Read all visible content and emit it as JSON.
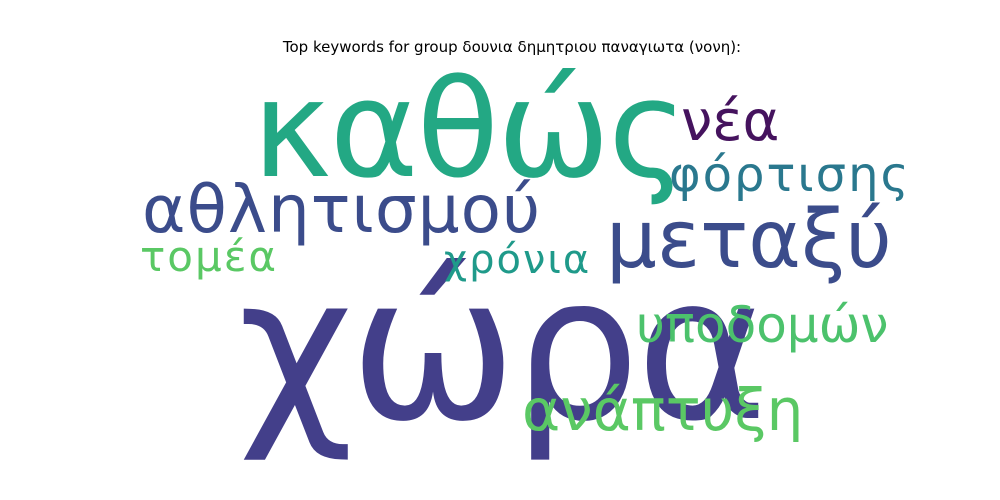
{
  "title": "Top keywords for group δουνια δημητριου παναγιωτα (νονη):",
  "words": [
    {
      "text": "χώρα",
      "color": "#433f8a"
    },
    {
      "text": "καθώς",
      "color": "#23a884"
    },
    {
      "text": "μεταξύ",
      "color": "#3b4c8b"
    },
    {
      "text": "αθλητισμού",
      "color": "#3b4c8b"
    },
    {
      "text": "υποδομών",
      "color": "#4cc26c"
    },
    {
      "text": "ανάπτυξη",
      "color": "#5ac864"
    },
    {
      "text": "νέα",
      "color": "#45135e"
    },
    {
      "text": "φόρτισης",
      "color": "#2a788e"
    },
    {
      "text": "χρόνια",
      "color": "#1f9a8a"
    },
    {
      "text": "τομέα",
      "color": "#5ac864"
    }
  ]
}
